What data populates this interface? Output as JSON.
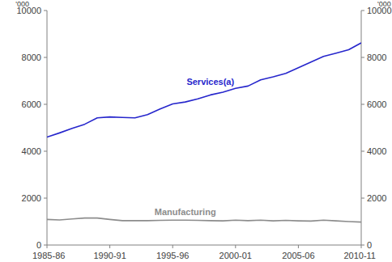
{
  "chart_data": {
    "type": "line",
    "y_label": "'000",
    "y2_label": "'000",
    "categories": [
      "1985-86",
      null,
      null,
      null,
      null,
      "1990-91",
      null,
      null,
      null,
      null,
      "1995-96",
      null,
      null,
      null,
      null,
      "2000-01",
      null,
      null,
      null,
      null,
      "2005-06",
      null,
      null,
      null,
      null,
      "2010-11"
    ],
    "series": [
      {
        "name": "Services(a)",
        "color": "#2626cc",
        "values": [
          4600,
          4780,
          4970,
          5150,
          5420,
          5460,
          5440,
          5420,
          5560,
          5800,
          6020,
          6100,
          6230,
          6400,
          6520,
          6680,
          6780,
          7040,
          7170,
          7320,
          7560,
          7800,
          8040,
          8180,
          8330,
          8620
        ]
      },
      {
        "name": "Manufacturing",
        "color": "#8c8c8c",
        "values": [
          1090,
          1070,
          1110,
          1150,
          1150,
          1090,
          1040,
          1040,
          1040,
          1050,
          1060,
          1060,
          1050,
          1040,
          1030,
          1060,
          1040,
          1060,
          1030,
          1050,
          1030,
          1020,
          1060,
          1030,
          1000,
          980
        ]
      }
    ],
    "ylim": [
      0,
      10000
    ],
    "yticks": [
      0,
      2000,
      4000,
      6000,
      8000,
      10000
    ],
    "y2lim": [
      0,
      10000
    ],
    "y2ticks": [
      0,
      2000,
      4000,
      6000,
      8000,
      10000
    ],
    "grid": false
  }
}
